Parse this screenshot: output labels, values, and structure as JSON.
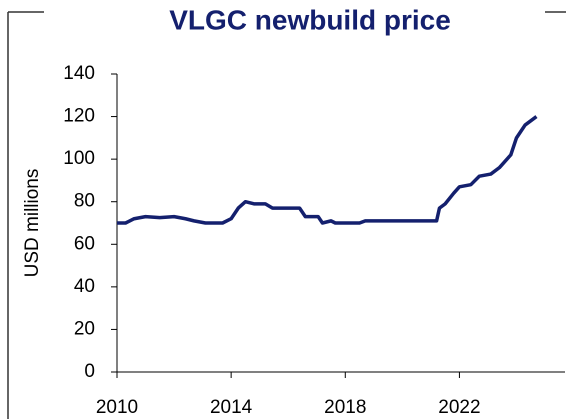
{
  "chart_data": {
    "type": "line",
    "title": "VLGC newbuild price",
    "y_label": "USD millions",
    "x": [
      2010.0,
      2010.3,
      2010.6,
      2011.0,
      2011.5,
      2012.0,
      2012.4,
      2012.7,
      2013.1,
      2013.7,
      2014.0,
      2014.25,
      2014.5,
      2014.8,
      2015.2,
      2015.45,
      2016.4,
      2016.6,
      2017.05,
      2017.2,
      2017.5,
      2017.65,
      2018.5,
      2018.7,
      2021.2,
      2021.3,
      2021.5,
      2021.8,
      2022.0,
      2022.4,
      2022.7,
      2023.1,
      2023.4,
      2023.8,
      2024.0,
      2024.3,
      2024.5,
      2024.7
    ],
    "series": [
      {
        "name": "VLGC newbuild price",
        "color": "#14206e",
        "values": [
          70,
          70,
          72,
          73,
          72.5,
          73,
          72,
          71,
          70,
          70,
          72,
          77,
          80,
          79,
          79,
          77,
          77,
          73,
          73,
          70,
          71,
          70,
          70,
          71,
          71,
          77,
          79,
          84,
          87,
          88,
          92,
          93,
          96,
          102,
          110,
          116,
          118,
          120
        ]
      }
    ],
    "xlim": [
      2010,
      2025.7
    ],
    "xticks": [
      2010,
      2014,
      2018,
      2022
    ],
    "ylim": [
      0,
      140
    ],
    "yticks": [
      0,
      20,
      40,
      60,
      80,
      100,
      120,
      140
    ]
  }
}
